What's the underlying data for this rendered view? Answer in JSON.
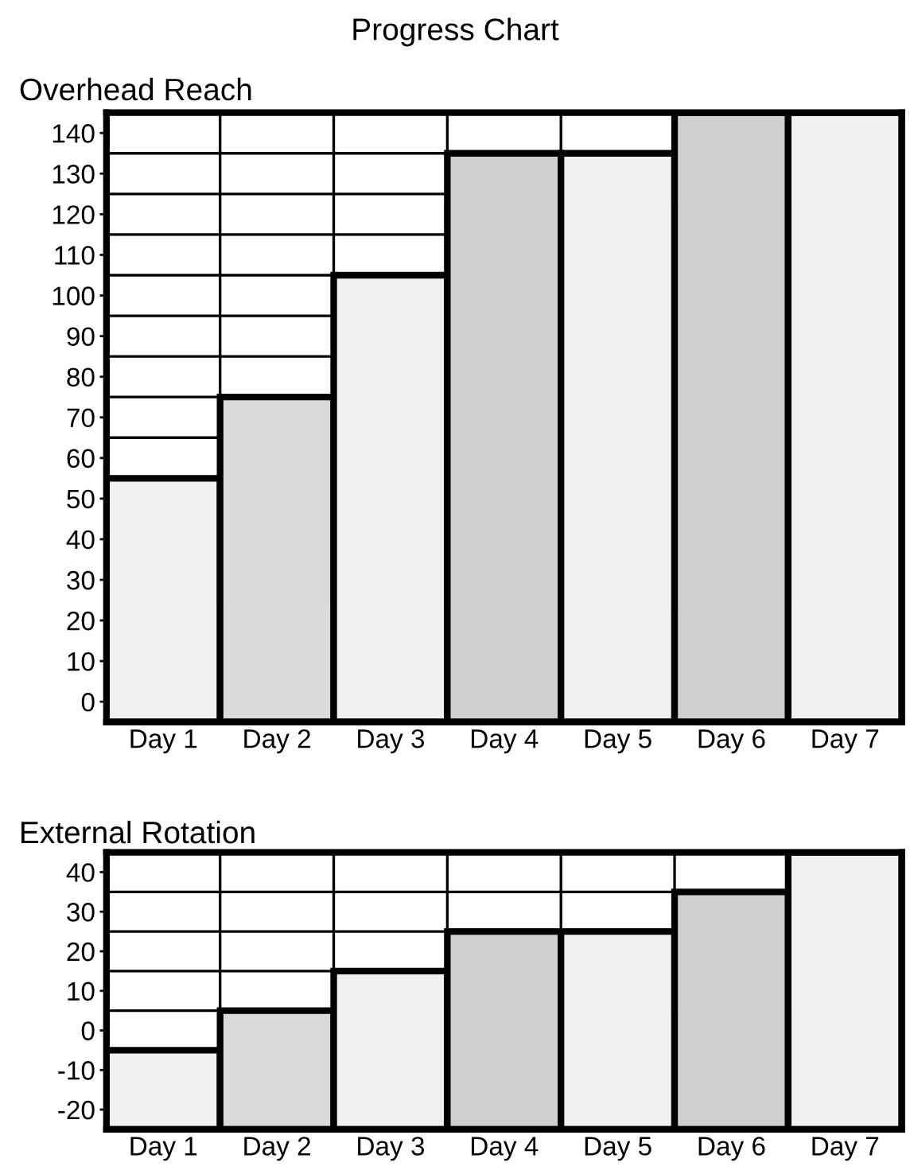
{
  "chart_data": [
    {
      "type": "bar",
      "title": "Progress Chart",
      "subtitle": "Overhead Reach",
      "categories": [
        "Day 1",
        "Day 2",
        "Day 3",
        "Day 4",
        "Day 5",
        "Day 6",
        "Day 7"
      ],
      "base": [
        -5,
        -5,
        -5,
        -5,
        -5,
        -5,
        -5
      ],
      "values": [
        60,
        80,
        110,
        140,
        140,
        150,
        150
      ],
      "colors": [
        "#f0f0f0",
        "#dadada",
        "#f0f0f0",
        "#cfcfcf",
        "#f0f0f0",
        "#cfcfcf",
        "#f0f0f0"
      ],
      "ylim": [
        -5,
        145
      ],
      "yticks": [
        0,
        10,
        20,
        30,
        40,
        50,
        60,
        70,
        80,
        90,
        100,
        110,
        120,
        130,
        140
      ],
      "grid": true
    },
    {
      "type": "bar",
      "subtitle": "External Rotation",
      "categories": [
        "Day 1",
        "Day 2",
        "Day 3",
        "Day 4",
        "Day 5",
        "Day 6",
        "Day 7"
      ],
      "base": [
        -25,
        -25,
        -25,
        -25,
        -25,
        -25,
        -25
      ],
      "values": [
        20,
        30,
        40,
        50,
        50,
        60,
        70
      ],
      "colors": [
        "#f0f0f0",
        "#dadada",
        "#f0f0f0",
        "#cfcfcf",
        "#f0f0f0",
        "#cfcfcf",
        "#f0f0f0"
      ],
      "ylim": [
        -25,
        45
      ],
      "yticks": [
        -20,
        -10,
        0,
        10,
        20,
        30,
        40
      ],
      "grid": true
    }
  ]
}
